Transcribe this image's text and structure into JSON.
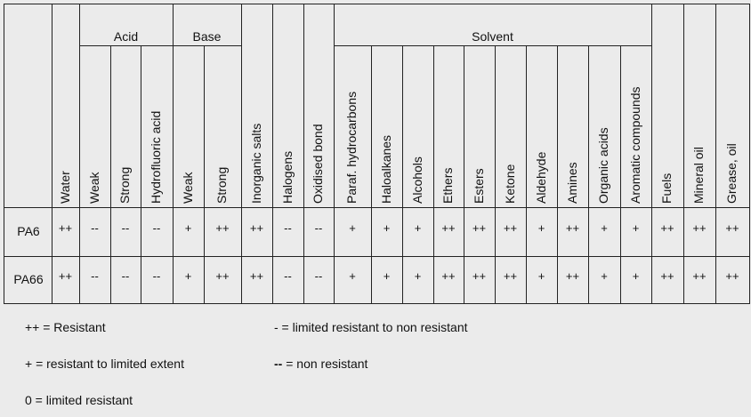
{
  "groups": [
    {
      "label": "Acid"
    },
    {
      "label": "Base"
    },
    {
      "label": "Solvent"
    }
  ],
  "columns": [
    "Water",
    "Weak",
    "Strong",
    "Hydrofluoric acid",
    "Weak",
    "Strong",
    "Inorganic salts",
    "Halogens",
    "Oxidised bond",
    "Paraf.  hydrocarbons",
    "Haloalkanes",
    "Alcohols",
    "Ethers",
    "Esters",
    "Ketone",
    "Aldehyde",
    "Amines",
    "Organic acids",
    "Aromatic compounds",
    "Fuels",
    "Mineral oil",
    "Grease, oil"
  ],
  "rows": [
    {
      "name": "PA6",
      "values": [
        "++",
        "--",
        "--",
        "--",
        "+",
        "++",
        "++",
        "--",
        "--",
        "+",
        "+",
        "+",
        "++",
        "++",
        "++",
        "+",
        "++",
        "+",
        "+",
        "++",
        "++",
        "++"
      ]
    },
    {
      "name": "PA66",
      "values": [
        "++",
        "--",
        "--",
        "--",
        "+",
        "++",
        "++",
        "--",
        "--",
        "+",
        "+",
        "+",
        "++",
        "++",
        "++",
        "+",
        "++",
        "+",
        "+",
        "++",
        "++",
        "++"
      ]
    }
  ],
  "legend": {
    "resistant": "++ = Resistant",
    "limited_extent": "+ = resistant to limited extent",
    "limited": "0 = limited resistant",
    "limited_to_non_symbol": "-",
    "limited_to_non_text": " = limited resistant to non resistant",
    "non_symbol": "--",
    "non_text": " = non resistant"
  }
}
